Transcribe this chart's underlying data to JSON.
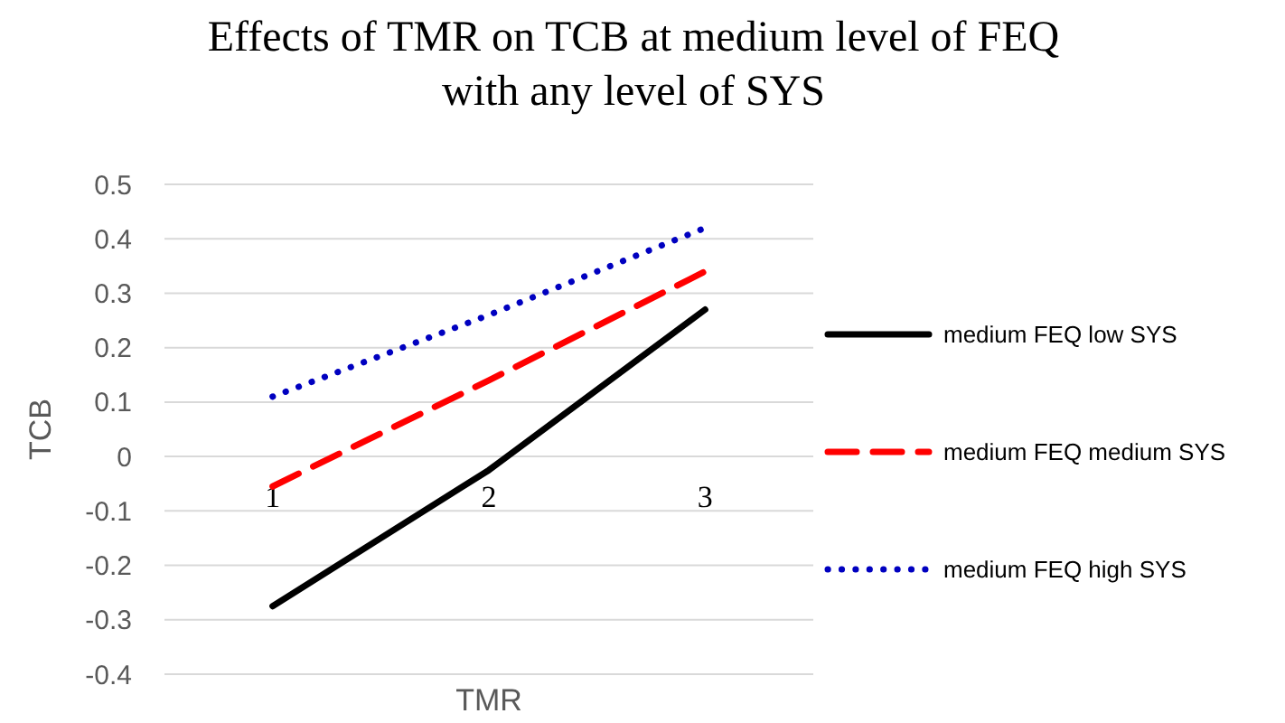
{
  "chart_data": {
    "type": "line",
    "title": "Effects of TMR on TCB at medium level of FEQ\nwith any level of SYS",
    "xlabel": "TMR",
    "ylabel": "TCB",
    "categories": [
      "1",
      "2",
      "3"
    ],
    "series": [
      {
        "name": "medium FEQ low SYS",
        "color": "#000000",
        "line_style": "solid",
        "values": [
          -0.275,
          -0.025,
          0.27
        ]
      },
      {
        "name": "medium FEQ medium SYS",
        "color": "#ff0000",
        "line_style": "dashed",
        "values": [
          -0.055,
          0.14,
          0.34
        ]
      },
      {
        "name": "medium FEQ high SYS",
        "color": "#0000c0",
        "line_style": "dotted",
        "values": [
          0.11,
          0.26,
          0.42
        ]
      }
    ],
    "ylim": [
      -0.4,
      0.5
    ],
    "yticks": [
      -0.4,
      -0.3,
      -0.2,
      -0.1,
      0,
      0.1,
      0.2,
      0.3,
      0.4,
      0.5
    ],
    "grid": "y",
    "legend": "right",
    "marker": "none"
  }
}
